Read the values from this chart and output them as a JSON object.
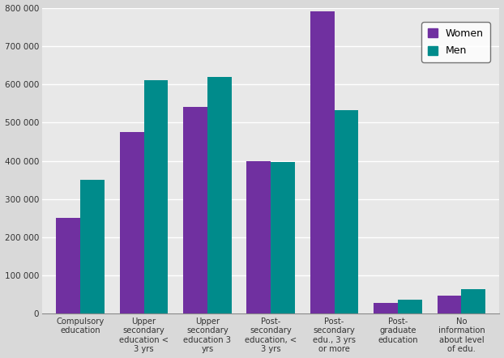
{
  "categories": [
    "Compulsory\neducation",
    "Upper\nsecondary\neducation <\n3 yrs",
    "Upper\nsecondary\neducation 3\nyrs",
    "Post-\nsecondary\neducation, <\n3 yrs",
    "Post-\nsecondary\nedu., 3 yrs\nor more",
    "Post-\ngraduate\neducation",
    "No\ninformation\nabout level\nof edu."
  ],
  "women_values": [
    250000,
    475000,
    540000,
    400000,
    790000,
    28000,
    48000
  ],
  "men_values": [
    350000,
    610000,
    620000,
    397000,
    533000,
    37000,
    65000
  ],
  "women_color": "#7030a0",
  "men_color": "#008b8b",
  "ylim": [
    0,
    800000
  ],
  "yticks": [
    0,
    100000,
    200000,
    300000,
    400000,
    500000,
    600000,
    700000,
    800000
  ],
  "ytick_labels": [
    "0",
    "100 000",
    "200 000",
    "300 000",
    "400 000",
    "500 000",
    "600 000",
    "700 000",
    "800 000"
  ],
  "legend_labels": [
    "Women",
    "Men"
  ],
  "fig_background": "#d9d9d9",
  "plot_background": "#e8e8e8",
  "bar_width": 0.38,
  "grid_color": "#ffffff"
}
